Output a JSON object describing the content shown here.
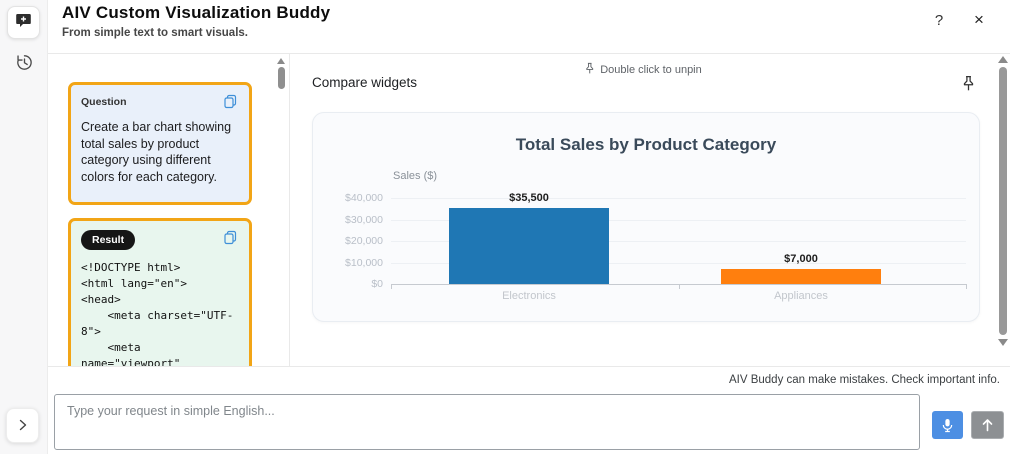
{
  "header": {
    "title": "AIV Custom Visualization Buddy",
    "subtitle": "From simple text to smart visuals.",
    "help_label": "?",
    "close_label": "×"
  },
  "chat": {
    "question": {
      "badge": "Question",
      "text": "Create a bar chart showing total sales by product category using different colors for each category."
    },
    "result": {
      "badge": "Result",
      "code": "<!DOCTYPE html>\n<html lang=\"en\">\n<head>\n    <meta charset=\"UTF-\n8\">\n    <meta\nname=\"viewport\""
    }
  },
  "main": {
    "section_title": "Compare widgets",
    "unpin_hint": "Double click to unpin"
  },
  "chart_data": {
    "type": "bar",
    "title": "Total Sales by Product Category",
    "xlabel": "",
    "ylabel": "Sales ($)",
    "categories": [
      "Electronics",
      "Appliances"
    ],
    "values": [
      35500,
      7000
    ],
    "bar_labels": [
      "$35,500",
      "$7,000"
    ],
    "bar_colors": [
      "#1f77b4",
      "#ff7f0e"
    ],
    "ylim": [
      0,
      40000
    ],
    "ytick_labels": [
      "$40,000",
      "$30,000",
      "$20,000",
      "$10,000",
      "$0"
    ],
    "ytick_values": [
      40000,
      30000,
      20000,
      10000,
      0
    ],
    "grid": true,
    "legend": "none"
  },
  "footer": {
    "disclaimer": "AIV Buddy can make mistakes. Check important info.",
    "input_placeholder": "Type your request in simple English..."
  },
  "colors": {
    "card_accent_orange": "#f2a516",
    "question_bg": "#e9f0fa",
    "result_bg": "#e8f6ee",
    "bar_blue": "#1f77b4",
    "bar_orange": "#ff7f0e",
    "mic_button_blue": "#4d8fe3",
    "send_button_gray": "#8d9093",
    "result_badge_black": "#161616"
  }
}
